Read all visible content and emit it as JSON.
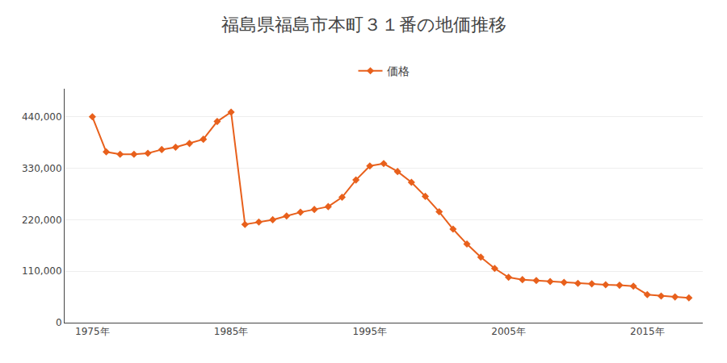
{
  "chart_data": {
    "type": "line",
    "title": "福島県福島市本町３１番の地価推移",
    "x": [
      1975,
      1976,
      1977,
      1978,
      1979,
      1980,
      1981,
      1982,
      1983,
      1984,
      1985,
      1986,
      1987,
      1988,
      1989,
      1990,
      1991,
      1992,
      1993,
      1994,
      1995,
      1996,
      1997,
      1998,
      1999,
      2000,
      2001,
      2002,
      2003,
      2004,
      2005,
      2006,
      2007,
      2008,
      2009,
      2010,
      2011,
      2012,
      2013,
      2014,
      2015,
      2016,
      2017,
      2018
    ],
    "series": [
      {
        "name": "価格",
        "color": "#e8601c",
        "marker": "diamond",
        "values": [
          440000,
          365000,
          360000,
          360000,
          362000,
          370000,
          375000,
          383000,
          392000,
          430000,
          450000,
          210000,
          215000,
          220000,
          228000,
          236000,
          242000,
          248000,
          268000,
          305000,
          335000,
          340000,
          323000,
          300000,
          270000,
          237000,
          200000,
          168000,
          140000,
          116000,
          97000,
          92000,
          90000,
          88000,
          86000,
          84000,
          83000,
          81000,
          80000,
          78000,
          60000,
          57000,
          55000,
          53000
        ]
      }
    ],
    "xlim": [
      1973,
      2019
    ],
    "xticks": [
      {
        "value": 1975,
        "label": "1975年"
      },
      {
        "value": 1985,
        "label": "1985年"
      },
      {
        "value": 1995,
        "label": "1995年"
      },
      {
        "value": 2005,
        "label": "2005年"
      },
      {
        "value": 2015,
        "label": "2015年"
      }
    ],
    "ylim": [
      0,
      500000
    ],
    "yticks": [
      0,
      {
        "value": 110000,
        "label": "110,000"
      },
      {
        "value": 220000,
        "label": "220,000"
      },
      {
        "value": 330000,
        "label": "330,000"
      },
      {
        "value": 440000,
        "label": "440,000"
      }
    ],
    "grid": "y",
    "legend": "top"
  }
}
